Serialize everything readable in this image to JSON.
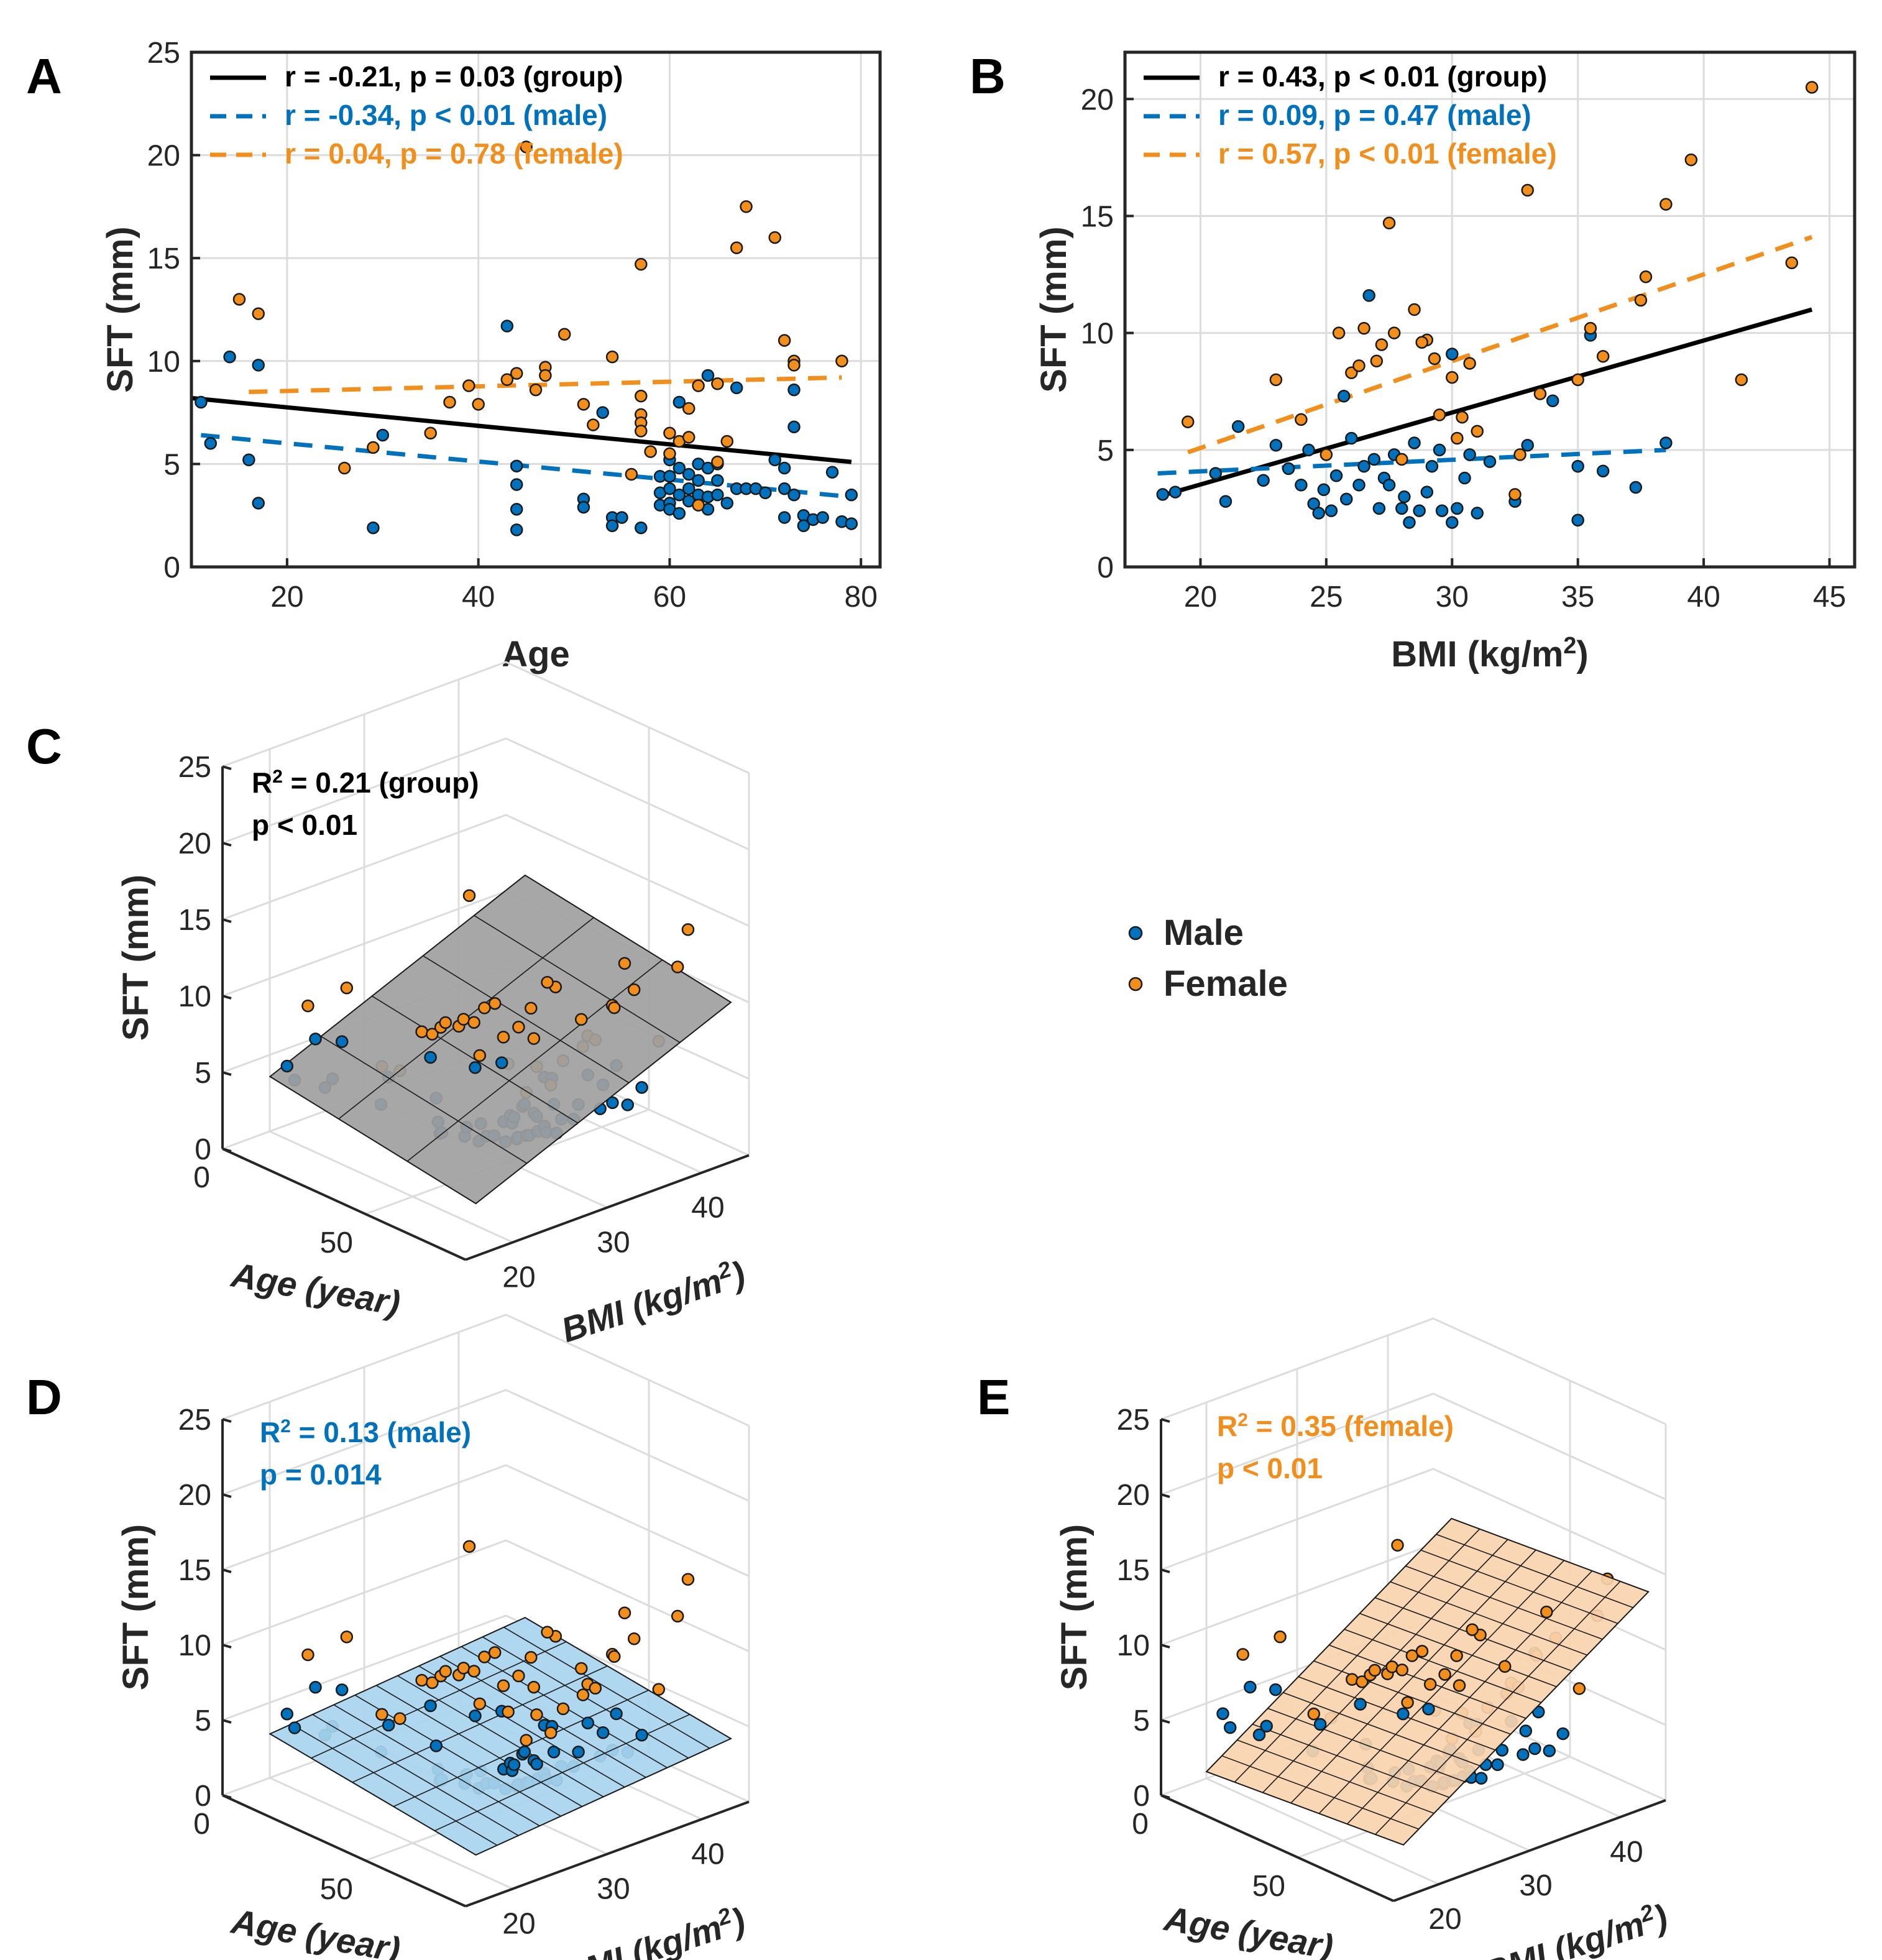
{
  "colors": {
    "male": "#0072BD",
    "female": "#F28E1C",
    "group": "#000000",
    "plane_group": "#A0A0A0",
    "plane_male": "#A8D5EF",
    "plane_female": "#F9D3AE"
  },
  "legend_common": {
    "male": "Male",
    "female": "Female"
  },
  "chart_data": [
    {
      "panel": "A",
      "type": "scatter",
      "xlabel": "Age",
      "ylabel": "SFT (mm)",
      "xlim": [
        10,
        82
      ],
      "ylim": [
        0,
        25
      ],
      "xticks": [
        "20",
        "40",
        "60",
        "80"
      ],
      "yticks": [
        "0",
        "5",
        "10",
        "15",
        "20",
        "25"
      ],
      "grid": true,
      "fits": [
        {
          "name": "group",
          "label": "r = -0.21, p = 0.03 (group)",
          "style": "solid",
          "x": [
            10,
            79
          ],
          "y": [
            8.2,
            5.1
          ]
        },
        {
          "name": "male",
          "label": "r = -0.34, p < 0.01 (male)",
          "style": "dashed",
          "x": [
            11,
            79
          ],
          "y": [
            6.4,
            3.4
          ]
        },
        {
          "name": "female",
          "label": "r = 0.04, p = 0.78 (female)",
          "style": "dashed",
          "x": [
            16,
            78
          ],
          "y": [
            8.5,
            9.2
          ]
        }
      ],
      "series": [
        {
          "name": "male",
          "points": [
            [
              11,
              8
            ],
            [
              12,
              6
            ],
            [
              14,
              10.2
            ],
            [
              16,
              5.2
            ],
            [
              17,
              3.1
            ],
            [
              17,
              9.8
            ],
            [
              29,
              1.9
            ],
            [
              30,
              6.4
            ],
            [
              43,
              11.7
            ],
            [
              44,
              4.9
            ],
            [
              44,
              4
            ],
            [
              44,
              2.8
            ],
            [
              44,
              1.8
            ],
            [
              51,
              3.3
            ],
            [
              51,
              2.9
            ],
            [
              53,
              7.5
            ],
            [
              54,
              2.4
            ],
            [
              54,
              2
            ],
            [
              55,
              2.4
            ],
            [
              57,
              1.9
            ],
            [
              59,
              4.4
            ],
            [
              59,
              3.6
            ],
            [
              59,
              3
            ],
            [
              60,
              5.2
            ],
            [
              60,
              4.4
            ],
            [
              60,
              3.8
            ],
            [
              60,
              3.1
            ],
            [
              60,
              2.8
            ],
            [
              61,
              8
            ],
            [
              61,
              4.8
            ],
            [
              61,
              3.5
            ],
            [
              61,
              2.6
            ],
            [
              62,
              4.5
            ],
            [
              62,
              3.2
            ],
            [
              62,
              3.8
            ],
            [
              63,
              5
            ],
            [
              63,
              4.2
            ],
            [
              63,
              3.5
            ],
            [
              64,
              9.3
            ],
            [
              64,
              4.8
            ],
            [
              64,
              3.4
            ],
            [
              64,
              2.8
            ],
            [
              65,
              4.2
            ],
            [
              65,
              3.5
            ],
            [
              65,
              5
            ],
            [
              66,
              3.1
            ],
            [
              67,
              8.7
            ],
            [
              67,
              3.8
            ],
            [
              68,
              3.8
            ],
            [
              69,
              3.8
            ],
            [
              70,
              3.6
            ],
            [
              71,
              5.2
            ],
            [
              72,
              4.8
            ],
            [
              72,
              3.8
            ],
            [
              72,
              2.4
            ],
            [
              73,
              8.6
            ],
            [
              73,
              6.8
            ],
            [
              73,
              3.5
            ],
            [
              74,
              2.5
            ],
            [
              74,
              2
            ],
            [
              75,
              2.3
            ],
            [
              76,
              2.4
            ],
            [
              77,
              4.6
            ],
            [
              78,
              2.2
            ],
            [
              79,
              3.5
            ],
            [
              79,
              2.1
            ]
          ]
        },
        {
          "name": "female",
          "points": [
            [
              15,
              13
            ],
            [
              17,
              12.3
            ],
            [
              26,
              4.8
            ],
            [
              29,
              5.8
            ],
            [
              35,
              6.5
            ],
            [
              37,
              8
            ],
            [
              39,
              8.8
            ],
            [
              40,
              7.9
            ],
            [
              43,
              9.1
            ],
            [
              44,
              9.4
            ],
            [
              45,
              20.4
            ],
            [
              46,
              8.6
            ],
            [
              47,
              9.7
            ],
            [
              47,
              9.3
            ],
            [
              49,
              11.3
            ],
            [
              51,
              7.9
            ],
            [
              52,
              6.9
            ],
            [
              54,
              10.2
            ],
            [
              56,
              4.5
            ],
            [
              57,
              14.7
            ],
            [
              57,
              8.3
            ],
            [
              57,
              7.4
            ],
            [
              57,
              7
            ],
            [
              57,
              6.6
            ],
            [
              58,
              5.6
            ],
            [
              60,
              6.5
            ],
            [
              60,
              5.5
            ],
            [
              61,
              6.1
            ],
            [
              62,
              7.7
            ],
            [
              62,
              6.3
            ],
            [
              63,
              8.8
            ],
            [
              63,
              3
            ],
            [
              65,
              5.1
            ],
            [
              65,
              8.9
            ],
            [
              66,
              6.1
            ],
            [
              67,
              15.5
            ],
            [
              68,
              17.5
            ],
            [
              71,
              16
            ],
            [
              72,
              11
            ],
            [
              73,
              10
            ],
            [
              73,
              9.8
            ],
            [
              78,
              10
            ]
          ]
        }
      ]
    },
    {
      "panel": "B",
      "type": "scatter",
      "xlabel": "BMI (kg/m",
      "xlabel_sup": "2",
      "xlabel_end": ")",
      "ylabel": "SFT (mm)",
      "xlim": [
        17,
        46
      ],
      "ylim": [
        0,
        22
      ],
      "xticks": [
        "20",
        "25",
        "30",
        "35",
        "40",
        "45"
      ],
      "yticks": [
        "0",
        "5",
        "10",
        "15",
        "20"
      ],
      "grid": true,
      "fits": [
        {
          "name": "group",
          "label": "r = 0.43, p < 0.01 (group)",
          "style": "solid",
          "x": [
            18.3,
            44.3
          ],
          "y": [
            3,
            11
          ]
        },
        {
          "name": "male",
          "label": "r = 0.09, p = 0.47 (male)",
          "style": "dashed",
          "x": [
            18.3,
            38.5
          ],
          "y": [
            4,
            5
          ]
        },
        {
          "name": "female",
          "label": "r = 0.57, p < 0.01 (female)",
          "style": "dashed",
          "x": [
            19.5,
            44.3
          ],
          "y": [
            4.9,
            14.1
          ]
        }
      ],
      "series": [
        {
          "name": "male",
          "points": [
            [
              18.5,
              3.1
            ],
            [
              19,
              3.2
            ],
            [
              20.6,
              4
            ],
            [
              21,
              2.8
            ],
            [
              21.5,
              6
            ],
            [
              22.5,
              3.7
            ],
            [
              23,
              5.2
            ],
            [
              23.5,
              4.2
            ],
            [
              24,
              3.5
            ],
            [
              24.3,
              5
            ],
            [
              24.5,
              2.7
            ],
            [
              24.7,
              2.3
            ],
            [
              24.9,
              3.3
            ],
            [
              25.2,
              2.4
            ],
            [
              25.4,
              3.9
            ],
            [
              25.7,
              7.3
            ],
            [
              25.8,
              2.9
            ],
            [
              26,
              5.5
            ],
            [
              26.3,
              3.5
            ],
            [
              26.5,
              4.3
            ],
            [
              26.7,
              11.6
            ],
            [
              26.9,
              4.6
            ],
            [
              27.1,
              2.5
            ],
            [
              27.3,
              3.8
            ],
            [
              27.5,
              3.5
            ],
            [
              27.7,
              4.8
            ],
            [
              28,
              2.5
            ],
            [
              28.1,
              3
            ],
            [
              28.3,
              1.9
            ],
            [
              28.5,
              5.3
            ],
            [
              28.7,
              2.4
            ],
            [
              29,
              3.2
            ],
            [
              29.2,
              4.3
            ],
            [
              29.5,
              5
            ],
            [
              29.6,
              2.4
            ],
            [
              30,
              1.9
            ],
            [
              30,
              9.1
            ],
            [
              30.2,
              2.5
            ],
            [
              30.5,
              3.8
            ],
            [
              30.7,
              4.8
            ],
            [
              31,
              2.3
            ],
            [
              31.5,
              4.5
            ],
            [
              32.5,
              2.8
            ],
            [
              33,
              5.2
            ],
            [
              34,
              7.1
            ],
            [
              35,
              4.3
            ],
            [
              35,
              2
            ],
            [
              36,
              4.1
            ],
            [
              37.3,
              3.4
            ],
            [
              38.5,
              5.3
            ],
            [
              35.5,
              9.9
            ]
          ]
        },
        {
          "name": "female",
          "points": [
            [
              19.5,
              6.2
            ],
            [
              23,
              8
            ],
            [
              24,
              6.3
            ],
            [
              25,
              4.8
            ],
            [
              25.5,
              10
            ],
            [
              26,
              8.3
            ],
            [
              26.3,
              8.6
            ],
            [
              26.5,
              10.2
            ],
            [
              27,
              8.8
            ],
            [
              27.2,
              9.5
            ],
            [
              27.5,
              14.7
            ],
            [
              27.7,
              10
            ],
            [
              28,
              4.6
            ],
            [
              28.5,
              11
            ],
            [
              29,
              9.7
            ],
            [
              29.3,
              8.9
            ],
            [
              29.5,
              6.5
            ],
            [
              30,
              8.1
            ],
            [
              30.2,
              5.5
            ],
            [
              30.4,
              6.4
            ],
            [
              30.7,
              8.7
            ],
            [
              31,
              5.8
            ],
            [
              32.5,
              3.1
            ],
            [
              33,
              16.1
            ],
            [
              33.5,
              7.4
            ],
            [
              35,
              8
            ],
            [
              35.5,
              10.2
            ],
            [
              36,
              9
            ],
            [
              37.5,
              11.4
            ],
            [
              37.7,
              12.4
            ],
            [
              38.5,
              15.5
            ],
            [
              39.5,
              17.4
            ],
            [
              41.5,
              8
            ],
            [
              43.5,
              13
            ],
            [
              44.3,
              20.5
            ],
            [
              32.7,
              4.8
            ],
            [
              28.8,
              9.6
            ]
          ]
        }
      ]
    },
    {
      "panel": "C",
      "type": "scatter",
      "title": "R",
      "title_sup": "2",
      "title_rest": " = 0.21 (group)",
      "stat": "p < 0.01",
      "xlabel": "Age (year)",
      "ylabel": "SFT (mm)",
      "zlabel": "BMI (kg/m",
      "zlabel_sup": "2",
      "zlabel_end": ")",
      "age_ticks": [
        "0",
        "50"
      ],
      "bmi_ticks": [
        "20",
        "30",
        "40"
      ],
      "sft_ticks": [
        "0",
        "5",
        "10",
        "15",
        "20",
        "25"
      ],
      "plane": "group",
      "ylim": [
        0,
        25
      ]
    },
    {
      "panel": "D",
      "type": "scatter",
      "title": "R",
      "title_sup": "2",
      "title_rest": " = 0.13 (male)",
      "stat": "p = 0.014",
      "xlabel": "Age (year)",
      "ylabel": "SFT (mm)",
      "zlabel": "BMI (kg/m",
      "zlabel_sup": "2",
      "zlabel_end": ")",
      "age_ticks": [
        "0",
        "50"
      ],
      "bmi_ticks": [
        "20",
        "30",
        "40"
      ],
      "sft_ticks": [
        "0",
        "5",
        "10",
        "15",
        "20",
        "25"
      ],
      "plane": "male",
      "ylim": [
        0,
        25
      ]
    },
    {
      "panel": "E",
      "type": "scatter",
      "title": "R",
      "title_sup": "2",
      "title_rest": " = 0.35 (female)",
      "stat": "p < 0.01",
      "xlabel": "Age (year)",
      "ylabel": "SFT (mm)",
      "zlabel": "BMI (kg/m",
      "zlabel_sup": "2",
      "zlabel_end": ")",
      "age_ticks": [
        "0",
        "50"
      ],
      "bmi_ticks": [
        "20",
        "30",
        "40"
      ],
      "sft_ticks": [
        "0",
        "5",
        "10",
        "15",
        "20",
        "25"
      ],
      "plane": "female",
      "ylim": [
        0,
        25
      ]
    }
  ]
}
